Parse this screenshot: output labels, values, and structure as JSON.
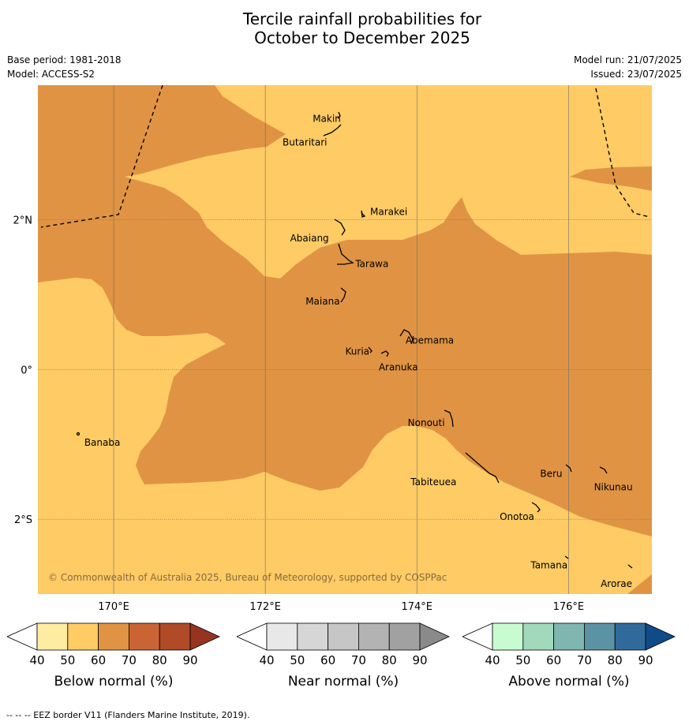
{
  "title": {
    "line1": "Tercile rainfall probabilities for",
    "line2": "October to December 2025"
  },
  "meta": {
    "base_period": "Base period: 1981-2018",
    "model": "Model: ACCESS-S2",
    "model_run": "Model run: 21/07/2025",
    "issued": "Issued: 23/07/2025"
  },
  "map": {
    "lon_range": [
      169,
      177.1
    ],
    "lat_range": [
      -3,
      3.8
    ],
    "lon_ticks": [
      {
        "value": 170,
        "label": "170°E"
      },
      {
        "value": 172,
        "label": "172°E"
      },
      {
        "value": 174,
        "label": "174°E"
      },
      {
        "value": 176,
        "label": "176°E"
      }
    ],
    "lat_ticks": [
      {
        "value": 2,
        "label": "2°N"
      },
      {
        "value": 0,
        "label": "0°"
      },
      {
        "value": -2,
        "label": "2°S"
      }
    ],
    "colors": {
      "below_50_60": "#fecb65",
      "below_60_70": "#e09443",
      "grid": "#6e6e6e",
      "coast": "#000000"
    },
    "places": [
      {
        "name": "Makin",
        "lon": 173.0,
        "lat": 3.33
      },
      {
        "name": "Butaritari",
        "lon": 172.8,
        "lat": 3.1
      },
      {
        "name": "Marakei",
        "lon": 173.3,
        "lat": 2.0
      },
      {
        "name": "Abaiang",
        "lon": 172.9,
        "lat": 1.82
      },
      {
        "name": "Tarawa",
        "lon": 173.0,
        "lat": 1.4
      },
      {
        "name": "Maiana",
        "lon": 173.0,
        "lat": 0.93
      },
      {
        "name": "Abemama",
        "lon": 173.85,
        "lat": 0.4
      },
      {
        "name": "Kuria",
        "lon": 173.42,
        "lat": 0.22
      },
      {
        "name": "Aranuka",
        "lon": 173.6,
        "lat": 0.17
      },
      {
        "name": "Nonouti",
        "lon": 174.4,
        "lat": -0.65
      },
      {
        "name": "Tabiteuea",
        "lon": 174.75,
        "lat": -1.4
      },
      {
        "name": "Beru",
        "lon": 176.0,
        "lat": -1.33
      },
      {
        "name": "Nikunau",
        "lon": 176.45,
        "lat": -1.37
      },
      {
        "name": "Onotoa",
        "lon": 175.55,
        "lat": -1.85
      },
      {
        "name": "Tamana",
        "lon": 176.0,
        "lat": -2.5
      },
      {
        "name": "Arorae",
        "lon": 176.82,
        "lat": -2.65
      },
      {
        "name": "Banaba",
        "lon": 169.55,
        "lat": -0.88
      }
    ],
    "copyright": "© Commonwealth of Australia 2025, Bureau of Meteorology, supported by COSPPac"
  },
  "colorbars": [
    {
      "label": "Below normal (%)",
      "ticks": [
        "40",
        "50",
        "60",
        "70",
        "80",
        "90"
      ],
      "colors": [
        "#ffffff",
        "#feeda0",
        "#fecb65",
        "#e09443",
        "#cb6434",
        "#b04a27",
        "#963420"
      ]
    },
    {
      "label": "Near normal (%)",
      "ticks": [
        "40",
        "50",
        "60",
        "70",
        "80",
        "90"
      ],
      "colors": [
        "#ffffff",
        "#e8e8e8",
        "#d6d6d6",
        "#c6c6c6",
        "#b3b3b3",
        "#a1a1a1",
        "#8a8a8a"
      ]
    },
    {
      "label": "Above normal (%)",
      "ticks": [
        "40",
        "50",
        "60",
        "70",
        "80",
        "90"
      ],
      "colors": [
        "#ffffff",
        "#c8fcd0",
        "#a2d9bd",
        "#7fb6b0",
        "#5b93a4",
        "#2f6a9b",
        "#104b89"
      ]
    }
  ],
  "footnote": "--  --  -- EEZ border V11 (Flanders Marine Institute, 2019)."
}
